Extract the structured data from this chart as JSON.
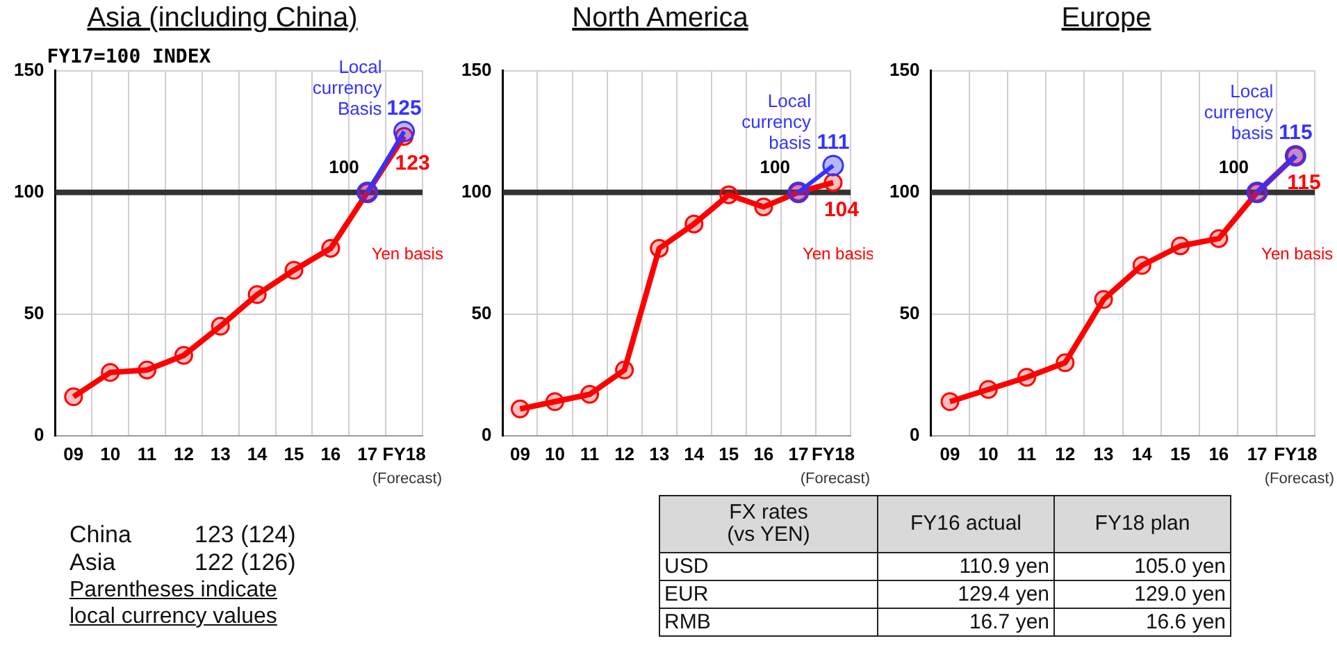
{
  "chart_data": [
    {
      "type": "line",
      "title": "Asia (including China)",
      "categories": [
        "09",
        "10",
        "11",
        "12",
        "13",
        "14",
        "15",
        "16",
        "17",
        "FY18"
      ],
      "ylim": [
        0,
        150
      ],
      "yticks": [
        0,
        50,
        100,
        150
      ],
      "grid": true,
      "marker": "circle",
      "series": [
        {
          "name": "Yen basis",
          "color": "#ff0000",
          "values": [
            16,
            26,
            27,
            33,
            45,
            58,
            68,
            77,
            100,
            123
          ],
          "value_labels": [
            null,
            null,
            null,
            null,
            null,
            null,
            null,
            null,
            null,
            "123"
          ]
        },
        {
          "name": "Local currency Basis",
          "color": "#3333ff",
          "values": [
            null,
            null,
            null,
            null,
            null,
            null,
            null,
            null,
            100,
            125
          ],
          "value_labels": [
            null,
            null,
            null,
            null,
            null,
            null,
            null,
            null,
            null,
            "125"
          ]
        }
      ],
      "ref_lines": [
        {
          "axis": "y",
          "value": 100,
          "color": "#333333"
        }
      ],
      "annotations": [
        "FY17=100 INDEX",
        {
          "text": "100",
          "x": "17",
          "y": 100
        },
        "(Forecast)"
      ]
    },
    {
      "type": "line",
      "title": "North America",
      "categories": [
        "09",
        "10",
        "11",
        "12",
        "13",
        "14",
        "15",
        "16",
        "17",
        "FY18"
      ],
      "ylim": [
        0,
        150
      ],
      "yticks": [
        0,
        50,
        100,
        150
      ],
      "grid": true,
      "marker": "circle",
      "series": [
        {
          "name": "Yen basis",
          "color": "#ff0000",
          "values": [
            11,
            14,
            17,
            27,
            77,
            87,
            99,
            94,
            100,
            104
          ],
          "value_labels": [
            null,
            null,
            null,
            null,
            null,
            null,
            null,
            null,
            null,
            "104"
          ]
        },
        {
          "name": "Local currency basis",
          "color": "#3333ff",
          "values": [
            null,
            null,
            null,
            null,
            null,
            null,
            null,
            null,
            100,
            111
          ],
          "value_labels": [
            null,
            null,
            null,
            null,
            null,
            null,
            null,
            null,
            null,
            "111"
          ]
        }
      ],
      "ref_lines": [
        {
          "axis": "y",
          "value": 100,
          "color": "#333333"
        }
      ],
      "annotations": [
        {
          "text": "100",
          "x": "17",
          "y": 100
        },
        "(Forecast)"
      ]
    },
    {
      "type": "line",
      "title": "Europe",
      "categories": [
        "09",
        "10",
        "11",
        "12",
        "13",
        "14",
        "15",
        "16",
        "17",
        "FY18"
      ],
      "ylim": [
        0,
        150
      ],
      "yticks": [
        0,
        50,
        100,
        150
      ],
      "grid": true,
      "marker": "circle",
      "series": [
        {
          "name": "Yen basis",
          "color": "#ff0000",
          "values": [
            14,
            19,
            24,
            30,
            56,
            70,
            78,
            81,
            100,
            115
          ],
          "value_labels": [
            null,
            null,
            null,
            null,
            null,
            null,
            null,
            null,
            null,
            "115"
          ]
        },
        {
          "name": "Local currency basis",
          "color": "#3333ff",
          "values": [
            null,
            null,
            null,
            null,
            null,
            null,
            null,
            null,
            100,
            115
          ],
          "value_labels": [
            null,
            null,
            null,
            null,
            null,
            null,
            null,
            null,
            null,
            "115"
          ]
        }
      ],
      "ref_lines": [
        {
          "axis": "y",
          "value": 100,
          "color": "#333333"
        }
      ],
      "annotations": [
        {
          "text": "100",
          "x": "17",
          "y": 100
        },
        "(Forecast)"
      ]
    },
    {
      "type": "other",
      "categories": [
        "China",
        "Asia"
      ],
      "value_labels": [
        "123 (124)",
        "122 (126)"
      ],
      "annotations": [
        "Parentheses indicate local currency values"
      ]
    },
    {
      "type": "other",
      "title": "FX rates (vs YEN)",
      "categories": [
        "FY16 actual",
        "FY18 plan"
      ],
      "y_categories": [
        "USD",
        "EUR",
        "RMB"
      ],
      "cell_labels": [
        [
          "110.9 yen",
          "105.0 yen"
        ],
        [
          "129.4 yen",
          "129.0 yen"
        ],
        [
          "16.7 yen",
          "16.6 yen"
        ]
      ]
    }
  ]
}
